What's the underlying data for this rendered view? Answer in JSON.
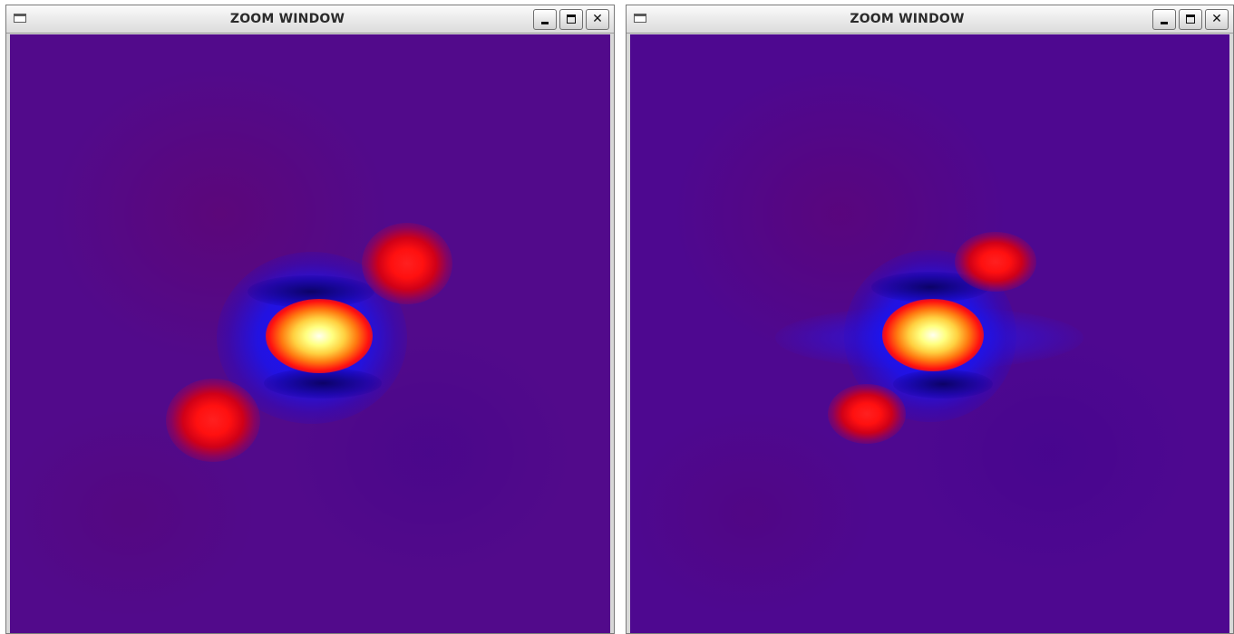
{
  "windows": [
    {
      "title": "ZOOM WINDOW",
      "buttons": {
        "minimize": "minimize",
        "maximize": "maximize",
        "close": "close"
      }
    },
    {
      "title": "ZOOM WINDOW",
      "buttons": {
        "minimize": "minimize",
        "maximize": "maximize",
        "close": "close"
      }
    }
  ],
  "icons": {
    "window_menu": "window-menu-icon",
    "minimize": "minimize-icon",
    "maximize": "maximize-icon",
    "close": "close-icon"
  },
  "colormap": {
    "background": "#51098d",
    "halo": "#1f10ff",
    "dark_lobe": "#100060",
    "secondary_spot": "#ff1010",
    "core": "#ffffa0"
  }
}
